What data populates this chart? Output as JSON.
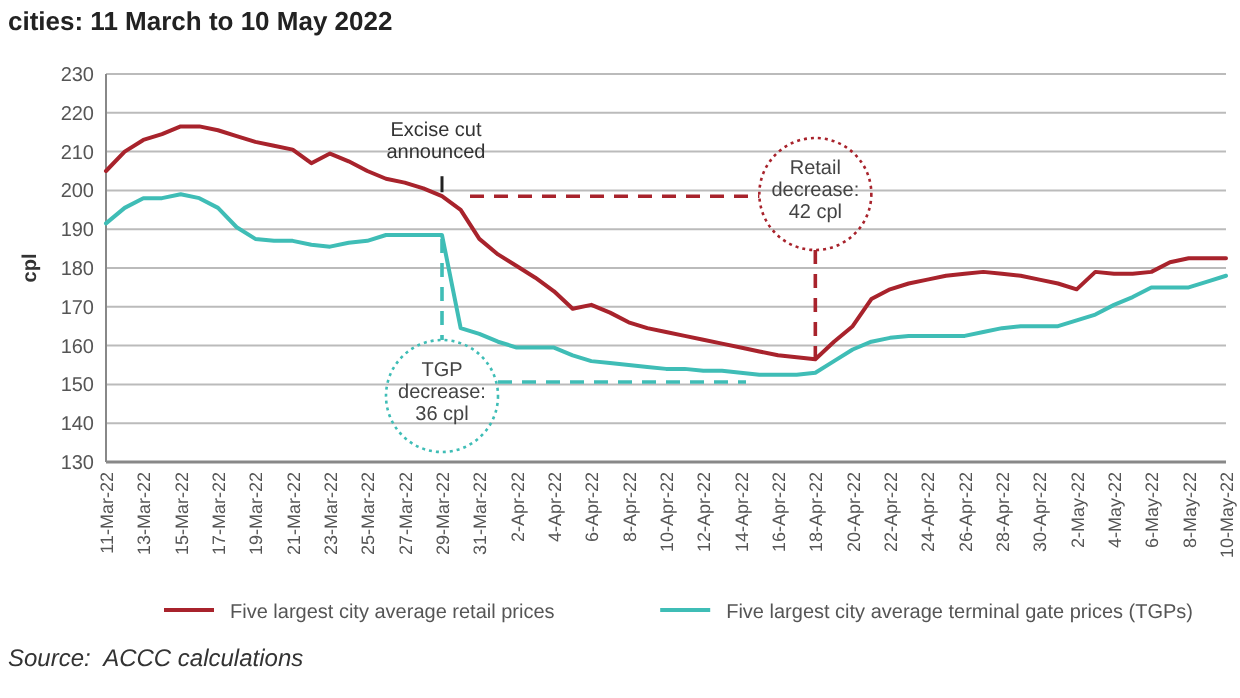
{
  "chart_data": {
    "type": "line",
    "title": "cities: 11 March to 10 May 2022",
    "ylabel": "cpl",
    "x": [
      "2022-03-11",
      "2022-03-12",
      "2022-03-13",
      "2022-03-14",
      "2022-03-15",
      "2022-03-16",
      "2022-03-17",
      "2022-03-18",
      "2022-03-19",
      "2022-03-20",
      "2022-03-21",
      "2022-03-22",
      "2022-03-23",
      "2022-03-24",
      "2022-03-25",
      "2022-03-26",
      "2022-03-27",
      "2022-03-28",
      "2022-03-29",
      "2022-03-30",
      "2022-03-31",
      "2022-04-01",
      "2022-04-02",
      "2022-04-03",
      "2022-04-04",
      "2022-04-05",
      "2022-04-06",
      "2022-04-07",
      "2022-04-08",
      "2022-04-09",
      "2022-04-10",
      "2022-04-11",
      "2022-04-12",
      "2022-04-13",
      "2022-04-14",
      "2022-04-15",
      "2022-04-16",
      "2022-04-17",
      "2022-04-18",
      "2022-04-19",
      "2022-04-20",
      "2022-04-21",
      "2022-04-22",
      "2022-04-23",
      "2022-04-24",
      "2022-04-25",
      "2022-04-26",
      "2022-04-27",
      "2022-04-28",
      "2022-04-29",
      "2022-04-30",
      "2022-05-01",
      "2022-05-02",
      "2022-05-03",
      "2022-05-04",
      "2022-05-05",
      "2022-05-06",
      "2022-05-07",
      "2022-05-08",
      "2022-05-09",
      "2022-05-10"
    ],
    "series": [
      {
        "name": "Five largest city average retail prices",
        "color": "#a8232c",
        "values": [
          205,
          210,
          213,
          214.5,
          216.5,
          216.5,
          215.5,
          214,
          212.5,
          211.5,
          210.5,
          207,
          209.5,
          207.5,
          205,
          203,
          202,
          200.5,
          198.5,
          195,
          187.5,
          183.5,
          180.5,
          177.5,
          174,
          169.5,
          170.5,
          168.5,
          166,
          164.5,
          163.5,
          162.5,
          161.5,
          160.5,
          159.5,
          158.5,
          157.5,
          157,
          156.5,
          161,
          165,
          172,
          174.5,
          176,
          177,
          178,
          178.5,
          179,
          178.5,
          178,
          177,
          176,
          174.5,
          179,
          178.5,
          178.5,
          179,
          181.5,
          182.5,
          182.5,
          182.5
        ]
      },
      {
        "name": "Five largest city average terminal gate prices (TGPs)",
        "color": "#3fbdb6",
        "values": [
          191.5,
          195.5,
          198,
          198,
          199,
          198,
          195.5,
          190.5,
          187.5,
          187,
          187,
          186,
          185.5,
          186.5,
          187,
          188.5,
          188.5,
          188.5,
          188.5,
          164.5,
          163,
          161,
          159.5,
          159.5,
          159.5,
          157.5,
          156,
          155.5,
          155,
          154.5,
          154,
          154,
          153.5,
          153.5,
          153,
          152.5,
          152.5,
          152.5,
          153,
          156,
          159,
          161,
          162,
          162.5,
          162.5,
          162.5,
          162.5,
          163.5,
          164.5,
          165,
          165,
          165,
          166.5,
          168,
          170.5,
          172.5,
          175,
          175,
          175,
          176.5,
          178
        ]
      }
    ],
    "xlim": [
      "2022-03-11",
      "2022-05-10"
    ],
    "xticks": [
      {
        "value": "2022-03-11",
        "label": "11-Mar-22"
      },
      {
        "value": "2022-03-13",
        "label": "13-Mar-22"
      },
      {
        "value": "2022-03-15",
        "label": "15-Mar-22"
      },
      {
        "value": "2022-03-17",
        "label": "17-Mar-22"
      },
      {
        "value": "2022-03-19",
        "label": "19-Mar-22"
      },
      {
        "value": "2022-03-21",
        "label": "21-Mar-22"
      },
      {
        "value": "2022-03-23",
        "label": "23-Mar-22"
      },
      {
        "value": "2022-03-25",
        "label": "25-Mar-22"
      },
      {
        "value": "2022-03-27",
        "label": "27-Mar-22"
      },
      {
        "value": "2022-03-29",
        "label": "29-Mar-22"
      },
      {
        "value": "2022-03-31",
        "label": "31-Mar-22"
      },
      {
        "value": "2022-04-02",
        "label": "2-Apr-22"
      },
      {
        "value": "2022-04-04",
        "label": "4-Apr-22"
      },
      {
        "value": "2022-04-06",
        "label": "6-Apr-22"
      },
      {
        "value": "2022-04-08",
        "label": "8-Apr-22"
      },
      {
        "value": "2022-04-10",
        "label": "10-Apr-22"
      },
      {
        "value": "2022-04-12",
        "label": "12-Apr-22"
      },
      {
        "value": "2022-04-14",
        "label": "14-Apr-22"
      },
      {
        "value": "2022-04-16",
        "label": "16-Apr-22"
      },
      {
        "value": "2022-04-18",
        "label": "18-Apr-22"
      },
      {
        "value": "2022-04-20",
        "label": "20-Apr-22"
      },
      {
        "value": "2022-04-22",
        "label": "22-Apr-22"
      },
      {
        "value": "2022-04-24",
        "label": "24-Apr-22"
      },
      {
        "value": "2022-04-26",
        "label": "26-Apr-22"
      },
      {
        "value": "2022-04-28",
        "label": "28-Apr-22"
      },
      {
        "value": "2022-04-30",
        "label": "30-Apr-22"
      },
      {
        "value": "2022-05-02",
        "label": "2-May-22"
      },
      {
        "value": "2022-05-04",
        "label": "4-May-22"
      },
      {
        "value": "2022-05-06",
        "label": "6-May-22"
      },
      {
        "value": "2022-05-08",
        "label": "8-May-22"
      },
      {
        "value": "2022-05-10",
        "label": "10-May-22"
      }
    ],
    "ylim": [
      130,
      230
    ],
    "yticks": [
      130,
      140,
      150,
      160,
      170,
      180,
      190,
      200,
      210,
      220,
      230
    ],
    "grid": "y",
    "legend": "bottom",
    "marker": "none",
    "line_style": "solid",
    "annotations": [
      {
        "text": "Excise  cut announced",
        "x": "2022-03-29",
        "y": 198.5
      },
      {
        "text": "Retail decrease: 42 cpl",
        "x": "2022-04-18",
        "y": 156.5
      },
      {
        "text": "TGP decrease: 36 cpl",
        "x": "2022-03-29",
        "y": 188.5
      },
      "Source:  ACCC calculations"
    ]
  }
}
